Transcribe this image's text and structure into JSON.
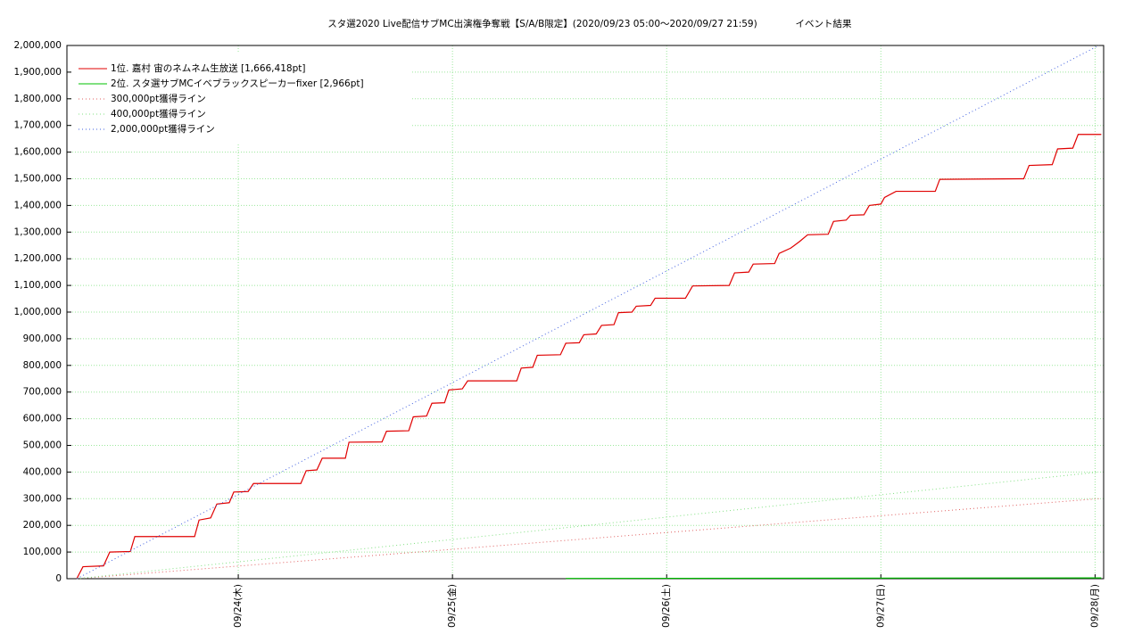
{
  "chart_data": {
    "type": "line",
    "title": "スタ選2020 Live配信サブMC出演権争奪戦【S/A/B限定】(2020/09/23 05:00～2020/09/27 21:59)",
    "subtitle": "イベント結果",
    "xlim": [
      23.2,
      28.04
    ],
    "xticks": [
      {
        "value": 24,
        "label": "09/24(木)"
      },
      {
        "value": 25,
        "label": "09/25(金)"
      },
      {
        "value": 26,
        "label": "09/26(土)"
      },
      {
        "value": 27,
        "label": "09/27(日)"
      },
      {
        "value": 28,
        "label": "09/28(月)"
      }
    ],
    "ylim": [
      0,
      2000000
    ],
    "yticks": [
      0,
      {
        "value": 100000,
        "label": "100,000"
      },
      {
        "value": 200000,
        "label": "200,000"
      },
      {
        "value": 300000,
        "label": "300,000"
      },
      {
        "value": 400000,
        "label": "400,000"
      },
      {
        "value": 500000,
        "label": "500,000"
      },
      {
        "value": 600000,
        "label": "600,000"
      },
      {
        "value": 700000,
        "label": "700,000"
      },
      {
        "value": 800000,
        "label": "800,000"
      },
      {
        "value": 900000,
        "label": "900,000"
      },
      {
        "value": 1000000,
        "label": "1,000,000"
      },
      {
        "value": 1100000,
        "label": "1,100,000"
      },
      {
        "value": 1200000,
        "label": "1,200,000"
      },
      {
        "value": 1300000,
        "label": "1,300,000"
      },
      {
        "value": 1400000,
        "label": "1,400,000"
      },
      {
        "value": 1500000,
        "label": "1,500,000"
      },
      {
        "value": 1600000,
        "label": "1,600,000"
      },
      {
        "value": 1700000,
        "label": "1,700,000"
      },
      {
        "value": 1800000,
        "label": "1,800,000"
      },
      {
        "value": 1900000,
        "label": "1,900,000"
      },
      {
        "value": 2000000,
        "label": "2,000,000"
      }
    ],
    "grid": true,
    "legend": "upper left",
    "series": [
      {
        "name": "1位. 嘉村 宙のネムネム生放送 [1,666,418pt]",
        "color": "#e00000",
        "style": "solid",
        "x": [
          23.246,
          23.275,
          23.371,
          23.4,
          23.496,
          23.517,
          23.796,
          23.817,
          23.871,
          23.9,
          23.958,
          23.979,
          24.046,
          24.071,
          24.292,
          24.317,
          24.367,
          24.392,
          24.5,
          24.517,
          24.671,
          24.692,
          24.796,
          24.817,
          24.879,
          24.904,
          24.963,
          24.983,
          25.046,
          25.071,
          25.3,
          25.321,
          25.375,
          25.396,
          25.504,
          25.529,
          25.592,
          25.613,
          25.671,
          25.696,
          25.754,
          25.775,
          25.838,
          25.858,
          25.925,
          25.946,
          26.088,
          26.121,
          26.292,
          26.317,
          26.383,
          26.404,
          26.504,
          26.525,
          26.579,
          26.621,
          26.658,
          26.754,
          26.779,
          26.838,
          26.858,
          26.921,
          26.946,
          27.0,
          27.017,
          27.071,
          27.254,
          27.275,
          27.667,
          27.692,
          27.8,
          27.825,
          27.896,
          27.921,
          28.029
        ],
        "values": [
          0,
          45000,
          48000,
          100000,
          102000,
          158000,
          158000,
          220000,
          228000,
          280000,
          285000,
          325000,
          327000,
          357000,
          357000,
          405000,
          408000,
          452000,
          452000,
          512000,
          513000,
          553000,
          555000,
          607000,
          610000,
          658000,
          660000,
          708000,
          712000,
          742000,
          742000,
          790000,
          793000,
          838000,
          840000,
          883000,
          885000,
          915000,
          918000,
          950000,
          953000,
          998000,
          1000000,
          1022000,
          1025000,
          1052000,
          1052000,
          1098000,
          1100000,
          1147000,
          1150000,
          1180000,
          1182000,
          1220000,
          1240000,
          1265000,
          1290000,
          1292000,
          1340000,
          1345000,
          1363000,
          1365000,
          1400000,
          1405000,
          1430000,
          1453000,
          1453000,
          1498000,
          1500000,
          1550000,
          1553000,
          1612000,
          1615000,
          1666418,
          1666418
        ]
      },
      {
        "name": "2位. スタ選サブMCイベブラックスピーカーfixer [2,966pt]",
        "color": "#00c000",
        "style": "solid",
        "x": [
          25.529,
          28.029
        ],
        "values": [
          1000,
          2966
        ]
      },
      {
        "name": "300,000pt獲得ライン",
        "color": "#e06060",
        "style": "dotted",
        "x": [
          23.246,
          28.017
        ],
        "values": [
          0,
          300000
        ]
      },
      {
        "name": "400,000pt獲得ライン",
        "color": "#80e080",
        "style": "dotted",
        "x": [
          23.246,
          28.017
        ],
        "values": [
          0,
          400000
        ]
      },
      {
        "name": "2,000,000pt獲得ライン",
        "color": "#4060e0",
        "style": "dotted",
        "x": [
          23.246,
          28.017
        ],
        "values": [
          0,
          2000000
        ]
      }
    ]
  }
}
